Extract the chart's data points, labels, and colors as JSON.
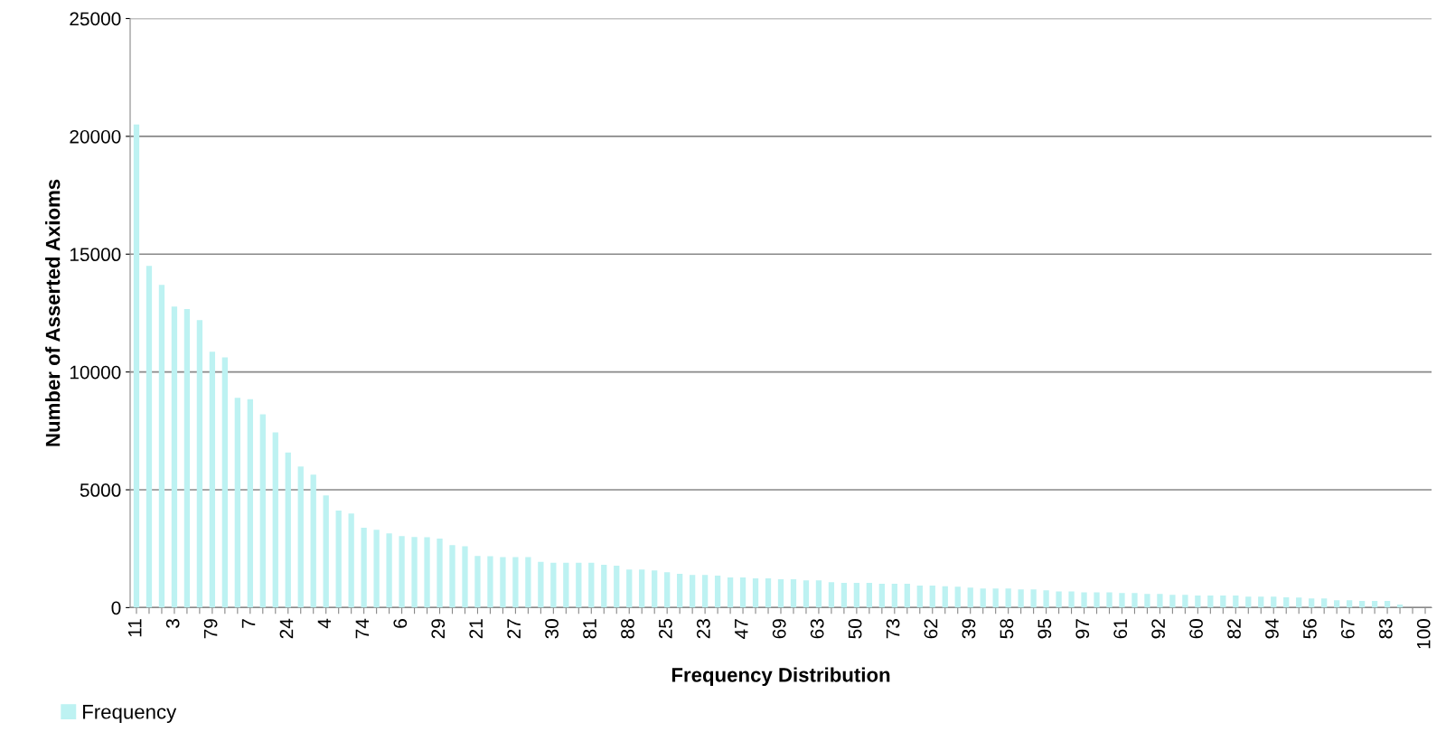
{
  "chart_data": {
    "type": "bar",
    "xlabel": "Frequency Distribution",
    "ylabel": "Number of Asserted Axioms",
    "categories": [
      "11",
      null,
      null,
      "3",
      null,
      null,
      "79",
      null,
      null,
      "7",
      null,
      null,
      "24",
      null,
      null,
      "4",
      null,
      null,
      "74",
      null,
      null,
      "6",
      null,
      null,
      "29",
      null,
      null,
      "21",
      null,
      null,
      "27",
      null,
      null,
      "30",
      null,
      null,
      "81",
      null,
      null,
      "88",
      null,
      null,
      "25",
      null,
      null,
      "23",
      null,
      null,
      "47",
      null,
      null,
      "69",
      null,
      null,
      "63",
      null,
      null,
      "50",
      null,
      null,
      "73",
      null,
      null,
      "62",
      null,
      null,
      "39",
      null,
      null,
      "58",
      null,
      null,
      "95",
      null,
      null,
      "97",
      null,
      null,
      "61",
      null,
      null,
      "92",
      null,
      null,
      "60",
      null,
      null,
      "82",
      null,
      null,
      "94",
      null,
      null,
      "56",
      null,
      null,
      "67",
      null,
      null,
      "83",
      null,
      null,
      "100"
    ],
    "series": [
      {
        "name": "Frequency",
        "color": "#bdf2f2",
        "values": [
          20500,
          14500,
          13700,
          12780,
          12670,
          12200,
          10860,
          10620,
          8900,
          8850,
          8200,
          7440,
          6580,
          5990,
          5640,
          4760,
          4120,
          3990,
          3390,
          3300,
          3150,
          3040,
          3000,
          2990,
          2930,
          2650,
          2600,
          2190,
          2180,
          2140,
          2140,
          2140,
          1940,
          1900,
          1900,
          1900,
          1900,
          1820,
          1780,
          1620,
          1620,
          1580,
          1500,
          1430,
          1390,
          1390,
          1360,
          1280,
          1280,
          1240,
          1240,
          1200,
          1200,
          1160,
          1160,
          1080,
          1050,
          1050,
          1050,
          1010,
          1010,
          1010,
          940,
          940,
          910,
          890,
          850,
          810,
          810,
          810,
          770,
          770,
          730,
          690,
          690,
          650,
          650,
          650,
          620,
          620,
          580,
          580,
          540,
          540,
          510,
          510,
          510,
          510,
          470,
          470,
          470,
          440,
          430,
          390,
          390,
          310,
          310,
          280,
          280,
          280,
          130,
          0,
          0
        ]
      }
    ],
    "ylim": [
      0,
      25000
    ],
    "yticks": [
      0,
      5000,
      10000,
      15000,
      20000,
      25000
    ],
    "grid": "y",
    "legend": "bottom left"
  }
}
